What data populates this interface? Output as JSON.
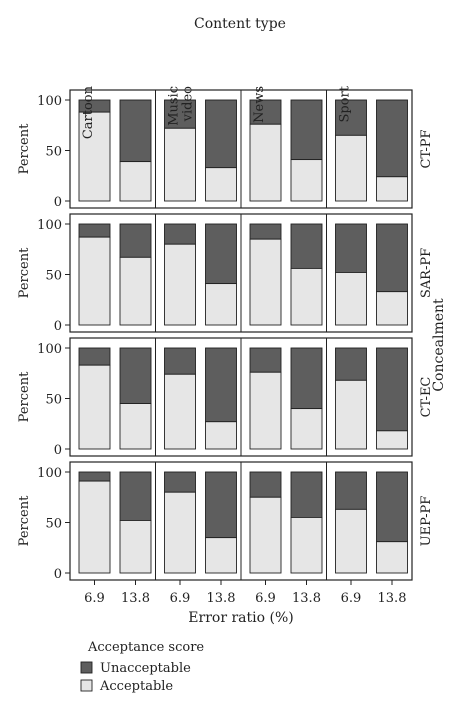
{
  "chart_data": {
    "type": "bar",
    "stacked": true,
    "top_title": "Content type",
    "columns": [
      "Cartoon",
      "Music video",
      "News",
      "Sport"
    ],
    "rows": [
      "CT-PF",
      "SAR-PF",
      "CT-EC",
      "UEP-PF"
    ],
    "right_title": "Concealment",
    "categories": [
      "6.9",
      "13.8"
    ],
    "xlabel": "Error ratio (%)",
    "ylabel": "Percent",
    "ylim": [
      0,
      100
    ],
    "yticks": [
      "0",
      "50",
      "100"
    ],
    "legend": {
      "title": "Acceptance score",
      "entries": [
        "Unacceptable",
        "Acceptable"
      ],
      "placement": "bottom-left"
    },
    "colors": {
      "acceptable": "#e6e6e6",
      "unacceptable": "#5e5e5e"
    },
    "acceptable_percent": {
      "CT-PF": [
        [
          88,
          39
        ],
        [
          72,
          33
        ],
        [
          76,
          41
        ],
        [
          65,
          24
        ]
      ],
      "SAR-PF": [
        [
          87,
          67
        ],
        [
          80,
          41
        ],
        [
          85,
          56
        ],
        [
          52,
          33
        ]
      ],
      "CT-EC": [
        [
          83,
          45
        ],
        [
          74,
          27
        ],
        [
          76,
          40
        ],
        [
          68,
          18
        ]
      ],
      "UEP-PF": [
        [
          91,
          52
        ],
        [
          80,
          35
        ],
        [
          75,
          55
        ],
        [
          63,
          31
        ]
      ]
    }
  }
}
